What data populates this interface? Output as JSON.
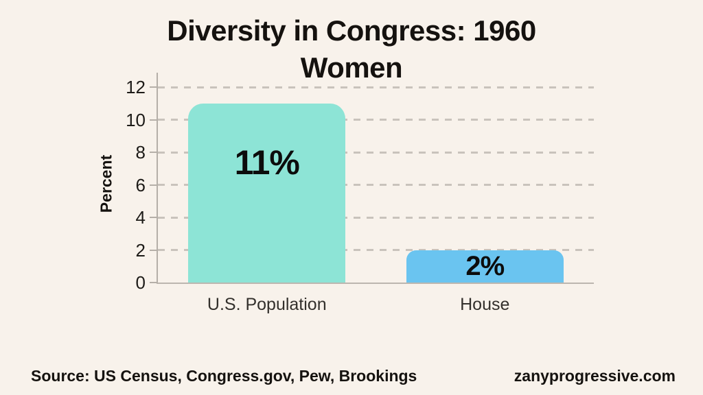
{
  "page": {
    "background_color": "#f8f2eb"
  },
  "title": {
    "line1": "Diversity in Congress: 1960",
    "line2": "Women"
  },
  "chart_data": {
    "type": "bar",
    "title": "Diversity in Congress: 1960 Women",
    "categories": [
      "U.S. Population",
      "House"
    ],
    "values": [
      11,
      2
    ],
    "value_labels": [
      "11%",
      "2%"
    ],
    "bar_colors": [
      "#8de4d6",
      "#6ac4f0"
    ],
    "xlabel": "",
    "ylabel": "Percent",
    "yticks": [
      0,
      2,
      4,
      6,
      8,
      10,
      12
    ],
    "ylim": [
      0,
      12.9
    ],
    "grid": "horizontal-dashed",
    "legend": "none"
  },
  "footer": {
    "source": "Source: US Census, Congress.gov, Pew, Brookings",
    "website": "zanyprogressive.com"
  }
}
